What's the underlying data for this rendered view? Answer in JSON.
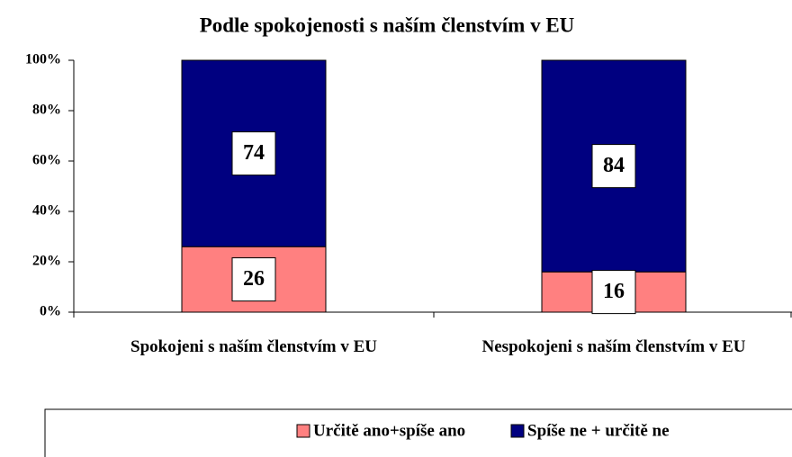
{
  "chart_data": {
    "type": "stacked_bar",
    "title": "Podle spokojenosti s naším členstvím v EU",
    "categories": [
      "Spokojeni s naším členstvím v EU",
      "Nespokojeni s naším členstvím v EU"
    ],
    "series": [
      {
        "name": "Určitě ano+spíše ano",
        "color": "#ff8080",
        "values": [
          26,
          16
        ]
      },
      {
        "name": "Spíše ne + určitě ne",
        "color": "#000080",
        "values": [
          74,
          84
        ]
      }
    ],
    "ylim": [
      0,
      100
    ],
    "yticks": [
      {
        "value": 0,
        "label": "0%"
      },
      {
        "value": 20,
        "label": "20%"
      },
      {
        "value": 40,
        "label": "40%"
      },
      {
        "value": 60,
        "label": "60%"
      },
      {
        "value": 80,
        "label": "80%"
      },
      {
        "value": 100,
        "label": "100%"
      }
    ],
    "legend": "bottom"
  }
}
